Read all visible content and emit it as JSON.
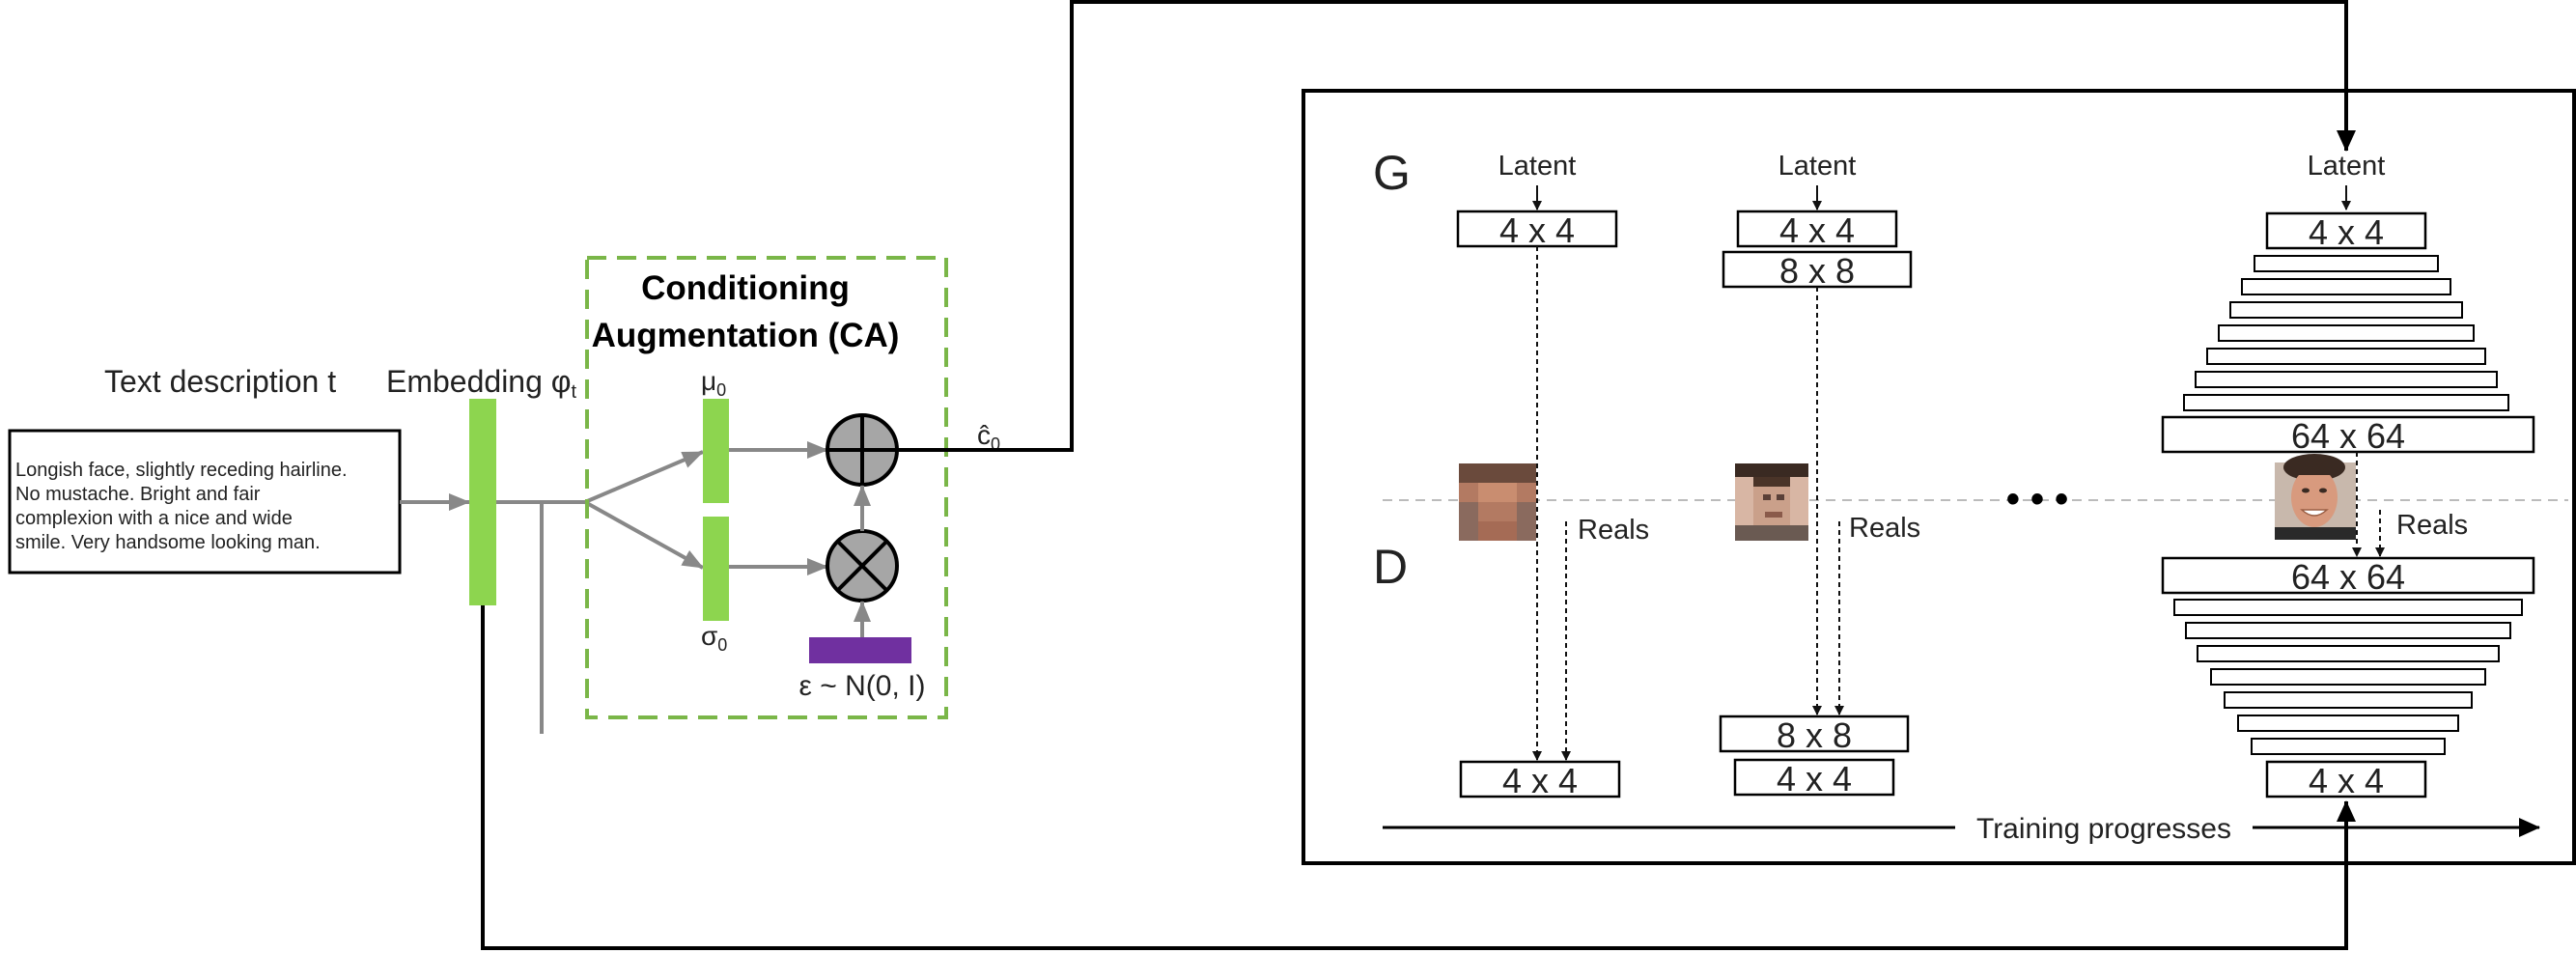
{
  "text_block": {
    "heading": "Text description t",
    "lines": [
      "Longish face, slightly receding hairline.",
      "No mustache. Bright and fair",
      "complexion with a nice and wide",
      "smile. Very handsome looking man."
    ]
  },
  "embedding": {
    "label": "Embedding φ",
    "subscript": "t"
  },
  "ca": {
    "title_line1": "Conditioning",
    "title_line2": "Augmentation (CA)",
    "mu": "μ",
    "mu_sub": "0",
    "sigma": "σ",
    "sigma_sub": "0",
    "noise": "ε ~ N(0, I)",
    "output": "ĉ",
    "output_sub": "0"
  },
  "pggan": {
    "g_label": "G",
    "d_label": "D",
    "latent": "Latent",
    "reals": "Reals",
    "ellipsis": "• • •",
    "progress": "Training progresses",
    "stage1": {
      "g": [
        "4 x 4"
      ],
      "d": [
        "4 x 4"
      ]
    },
    "stage2": {
      "g": [
        "4 x 4",
        "8 x 8"
      ],
      "d": [
        "8 x 8",
        "4 x 4"
      ]
    },
    "stage3": {
      "g_top": "4 x 4",
      "g_bottom": "64 x 64",
      "d_top": "64 x 64",
      "d_bottom": "4 x 4"
    }
  },
  "colors": {
    "green": "#8DD54F",
    "ca_border": "#7AB648",
    "purple": "#7030A0",
    "gray_arrow": "#888888",
    "node_fill": "#a6a6a6",
    "skin_light": "#d89a7e",
    "skin_dark": "#9a5e44",
    "hair": "#3a2a22"
  }
}
